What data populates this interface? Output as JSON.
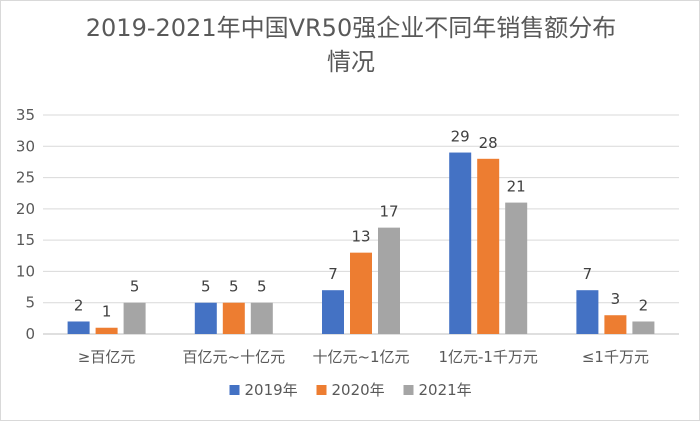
{
  "chart_data": {
    "type": "bar",
    "title": "2019-2021年中国VR50强企业不同年销售额分布情况",
    "categories": [
      "≥百亿元",
      "百亿元~十亿元",
      "十亿元~1亿元",
      "1亿元-1千万元",
      "≤1千万元"
    ],
    "series": [
      {
        "name": "2019年",
        "color": "#4472c4",
        "values": [
          2,
          5,
          7,
          29,
          7
        ]
      },
      {
        "name": "2020年",
        "color": "#ed7d31",
        "values": [
          1,
          5,
          13,
          28,
          3
        ]
      },
      {
        "name": "2021年",
        "color": "#a5a5a5",
        "values": [
          5,
          5,
          17,
          21,
          2
        ]
      }
    ],
    "xlabel": "",
    "ylabel": "",
    "ylim": [
      0,
      35
    ],
    "yticks": [
      0,
      5,
      10,
      15,
      20,
      25,
      30,
      35
    ],
    "grid": true,
    "legend_position": "bottom",
    "data_labels": true
  }
}
